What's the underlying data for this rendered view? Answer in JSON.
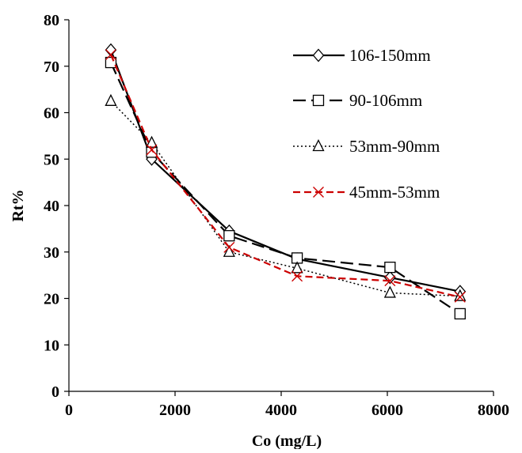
{
  "chart_data": {
    "type": "line",
    "xlabel": "Co (mg/L)",
    "ylabel": "Rt%",
    "xlim": [
      0,
      8000
    ],
    "ylim": [
      0,
      80
    ],
    "xticks": [
      0,
      2000,
      4000,
      6000,
      8000
    ],
    "yticks": [
      0,
      10,
      20,
      30,
      40,
      50,
      60,
      70,
      80
    ],
    "grid": false,
    "legend_position": "top-right",
    "series": [
      {
        "name": "106-150mm",
        "marker": "diamond",
        "line_style": "solid",
        "color": "#000000",
        "x": [
          790,
          1560,
          3020,
          4300,
          6050,
          7370
        ],
        "y": [
          73.5,
          50,
          34.5,
          28.5,
          24.5,
          21.5
        ]
      },
      {
        "name": "90-106mm",
        "marker": "square",
        "line_style": "long-dash",
        "color": "#000000",
        "x": [
          790,
          1560,
          3020,
          4300,
          6050,
          7370
        ],
        "y": [
          70.8,
          51.5,
          33.5,
          28.7,
          26.7,
          16.7
        ]
      },
      {
        "name": "53mm-90mm",
        "marker": "triangle",
        "line_style": "dotted",
        "color": "#000000",
        "x": [
          790,
          1560,
          3020,
          4300,
          6050,
          7370
        ],
        "y": [
          62.5,
          53.5,
          30,
          26.5,
          21.2,
          20.5
        ]
      },
      {
        "name": "45mm-53mm",
        "marker": "x",
        "line_style": "dashed",
        "color": "#cc0000",
        "x": [
          790,
          1560,
          3020,
          4300,
          6050,
          7370
        ],
        "y": [
          72.5,
          52,
          31,
          24.8,
          23.8,
          20.3
        ]
      }
    ]
  }
}
